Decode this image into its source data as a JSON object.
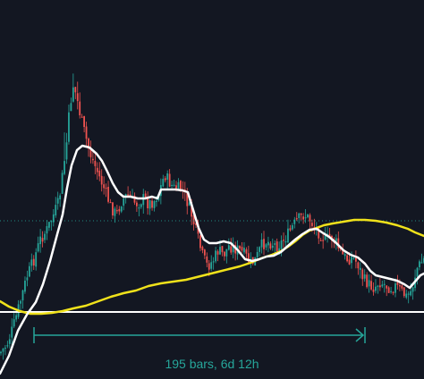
{
  "measure": {
    "label": "195 bars, 6d 12h",
    "color": "#26a69a"
  },
  "colors": {
    "background": "#131722",
    "up_candle": "#26a69a",
    "down_candle": "#ef5350",
    "fast_ma": "#ffffff",
    "slow_ma": "#f0e21b",
    "horizontal_line": "#ffffff",
    "price_line": "#26a69a"
  },
  "chart_data": {
    "type": "candlestick",
    "series": [
      {
        "name": "",
        "role": "fast moving average",
        "color": "#ffffff"
      },
      {
        "name": "",
        "role": "slow moving average",
        "color": "#f0e21b"
      }
    ],
    "horizontal_line": "white, below the price",
    "current_price_line": "dotted green",
    "grid": false,
    "measure_tool": "195 bars, 6d 12h"
  }
}
